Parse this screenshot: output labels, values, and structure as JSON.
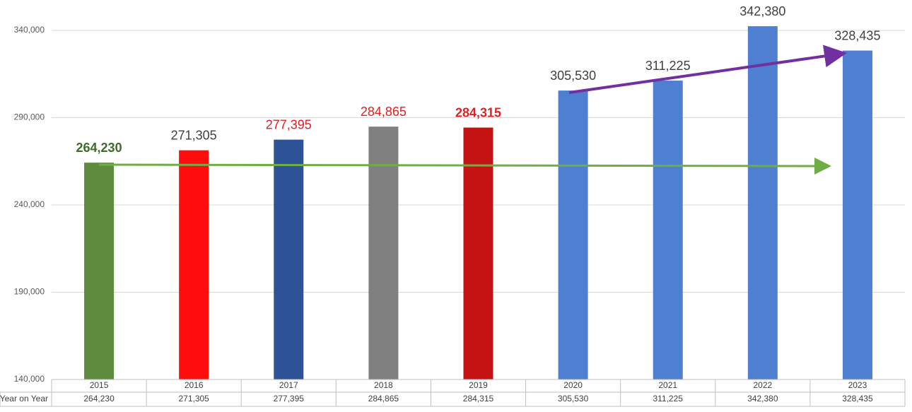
{
  "chart_data": {
    "type": "bar",
    "categories": [
      "2015",
      "2016",
      "2017",
      "2018",
      "2019",
      "2020",
      "2021",
      "2022",
      "2023"
    ],
    "series": [
      {
        "name": "Year on Year",
        "colors": [
          "#5e8b3e",
          "#ff0d0d",
          "#2e5296",
          "#808080",
          "#c41313",
          "#4f7fd0",
          "#4f7fd0",
          "#4f7fd0",
          "#4f7fd0"
        ],
        "values": [
          264230,
          271305,
          277395,
          284865,
          284315,
          305530,
          311225,
          342380,
          328435
        ],
        "value_labels": [
          "264,230",
          "271,305",
          "277,395",
          "284,865",
          "284,315",
          "305,530",
          "311,225",
          "342,380",
          "328,435"
        ],
        "value_label_colors": [
          "#3f6b2a",
          "#404040",
          "#e02020",
          "#e02020",
          "#e02020",
          "#404040",
          "#404040",
          "#404040",
          "#404040"
        ],
        "value_label_bold": [
          true,
          false,
          false,
          false,
          true,
          false,
          false,
          false,
          false
        ]
      }
    ],
    "ylim": [
      140000,
      357000
    ],
    "yticks": [
      {
        "value": 140000,
        "label": "140,000"
      },
      {
        "value": 190000,
        "label": "190,000"
      },
      {
        "value": 240000,
        "label": "240,000"
      },
      {
        "value": 290000,
        "label": "290,000"
      },
      {
        "value": 340000,
        "label": "340,000"
      }
    ],
    "grid": true
  }
}
